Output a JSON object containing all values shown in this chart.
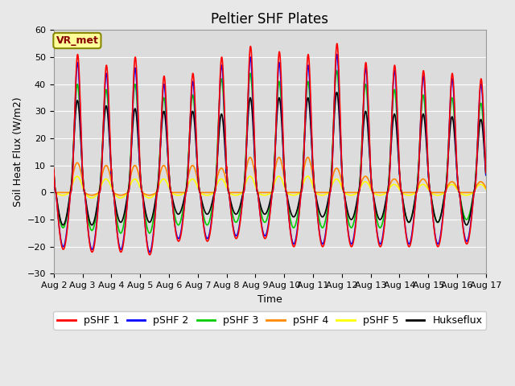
{
  "title": "Peltier SHF Plates",
  "xlabel": "Time",
  "ylabel": "Soil Heat Flux (W/m2)",
  "ylim": [
    -30,
    60
  ],
  "yticks": [
    -30,
    -20,
    -10,
    0,
    10,
    20,
    30,
    40,
    50,
    60
  ],
  "n_days": 15,
  "day_start": 2,
  "fig_bg": "#e8e8e8",
  "plot_bg": "#dcdcdc",
  "line_colors": {
    "pSHF 1": "#ff0000",
    "pSHF 2": "#0000ff",
    "pSHF 3": "#00cc00",
    "pSHF 4": "#ff8800",
    "pSHF 5": "#ffff00",
    "Hukseflux": "#000000"
  },
  "legend_labels": [
    "pSHF 1",
    "pSHF 2",
    "pSHF 3",
    "pSHF 4",
    "pSHF 5",
    "Hukseflux"
  ],
  "vr_met_label": "VR_met",
  "vr_met_box_color": "#ffff99",
  "vr_met_text_color": "#880000",
  "vr_met_border_color": "#888800",
  "title_fontsize": 12,
  "label_fontsize": 9,
  "tick_fontsize": 8,
  "legend_fontsize": 9,
  "grid_color": "#ffffff",
  "lw": 1.2
}
